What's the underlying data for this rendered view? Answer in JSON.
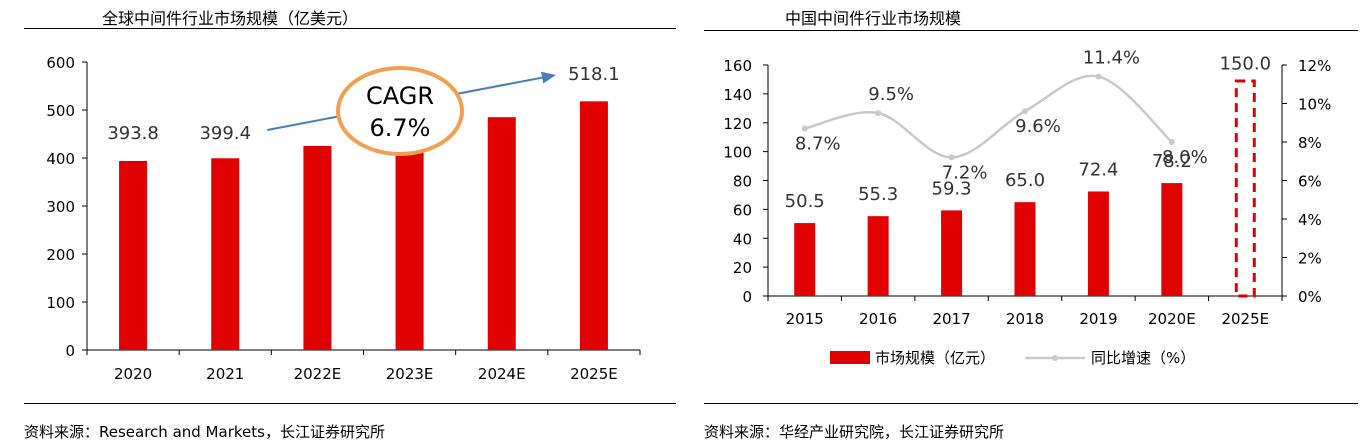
{
  "left": {
    "title": "全球中间件行业市场规模（亿美元）",
    "source": "资料来源：Research and Markets，长江证券研究所",
    "annotation": {
      "line1": "CAGR",
      "line2": "6.7%"
    },
    "chart_data": {
      "type": "bar",
      "categories": [
        "2020",
        "2021",
        "2022E",
        "2023E",
        "2024E",
        "2025E"
      ],
      "values": [
        393.8,
        399.4,
        425,
        455,
        485,
        518.1
      ],
      "labels": [
        "393.8",
        "399.4",
        "",
        "",
        "",
        "518.1"
      ],
      "ylim": [
        0,
        600
      ],
      "yticks": [
        "0",
        "100",
        "200",
        "300",
        "400",
        "500",
        "600"
      ],
      "grid": false,
      "colors": {
        "bar": "#e00000",
        "arrow": "#4a7ebb",
        "ellipse": "#f0a050"
      }
    }
  },
  "right": {
    "title": "中国中间件行业市场规模",
    "source": "资料来源：华经产业研究院，长江证券研究所",
    "chart_data": {
      "type": "bar",
      "categories": [
        "2015",
        "2016",
        "2017",
        "2018",
        "2019",
        "2020E",
        "2025E"
      ],
      "series": [
        {
          "name": "市场规模（亿元）",
          "type": "bar",
          "values": [
            50.5,
            55.3,
            59.3,
            65.0,
            72.4,
            78.2,
            150.0
          ],
          "labels": [
            "50.5",
            "55.3",
            "59.3",
            "65.0",
            "72.4",
            "78.2",
            "150.0"
          ],
          "styles": [
            "solid",
            "solid",
            "solid",
            "solid",
            "solid",
            "solid",
            "dashed"
          ],
          "color": "#e00000"
        },
        {
          "name": "同比增速（%）",
          "type": "line",
          "axis": "right",
          "values": [
            8.7,
            9.5,
            7.2,
            9.6,
            11.4,
            8.0,
            null
          ],
          "labels": [
            "8.7%",
            "9.5%",
            "7.2%",
            "9.6%",
            "11.4%",
            "8.0%",
            ""
          ],
          "color": "#c8c8c8"
        }
      ],
      "ylim": [
        0,
        160
      ],
      "yticks": [
        "0",
        "20",
        "40",
        "60",
        "80",
        "100",
        "120",
        "140",
        "160"
      ],
      "y2lim": [
        0,
        12
      ],
      "y2ticks": [
        "0%",
        "2%",
        "4%",
        "6%",
        "8%",
        "10%",
        "12%"
      ],
      "legend_position": "bottom",
      "grid": false
    }
  }
}
